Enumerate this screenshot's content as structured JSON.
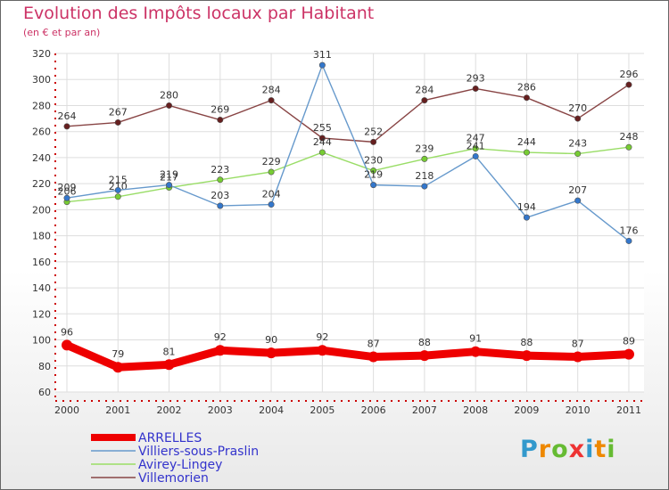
{
  "chart_data": {
    "type": "line",
    "title": "Evolution des Impôts locaux par Habitant",
    "subtitle": "(en € et par an)",
    "xlabel": "",
    "ylabel": "",
    "ylim": [
      60,
      320
    ],
    "yticks": [
      60,
      80,
      100,
      120,
      140,
      160,
      180,
      200,
      220,
      240,
      260,
      280,
      300,
      320
    ],
    "categories": [
      "2000",
      "2001",
      "2002",
      "2003",
      "2004",
      "2005",
      "2006",
      "2007",
      "2008",
      "2009",
      "2010",
      "2011"
    ],
    "grid": true,
    "legend_position": "bottom-left",
    "series": [
      {
        "name": "ARRELLES",
        "values": [
          96,
          79,
          81,
          92,
          90,
          92,
          87,
          88,
          91,
          88,
          87,
          89
        ],
        "color": "#ee0000",
        "point_color": "#ee0000",
        "labels": [
          "96",
          "79",
          "81",
          "92",
          "90",
          "92",
          "87",
          "88",
          "91",
          "88",
          "87",
          "89"
        ]
      },
      {
        "name": "Villiers-sous-Praslin",
        "values": [
          209,
          215,
          219,
          203,
          204,
          311,
          219,
          218,
          241,
          194,
          207,
          176
        ],
        "color": "#6699cc",
        "point_color": "#3377cc",
        "labels": [
          "209",
          "215",
          "219",
          "203",
          "204",
          "311",
          "219",
          "218",
          "241",
          "194",
          "207",
          "176"
        ]
      },
      {
        "name": "Avirey-Lingey",
        "values": [
          206,
          210,
          217,
          223,
          229,
          244,
          230,
          239,
          247,
          244,
          243,
          248
        ],
        "color": "#99dd66",
        "point_color": "#77cc33",
        "labels": [
          "206",
          "210",
          "217",
          "223",
          "229",
          "244",
          "230",
          "239",
          "247",
          "244",
          "243",
          "248"
        ]
      },
      {
        "name": "Villemorien",
        "values": [
          264,
          267,
          280,
          269,
          284,
          255,
          252,
          284,
          293,
          286,
          270,
          296
        ],
        "color": "#884444",
        "point_color": "#661f1f",
        "labels": [
          "264",
          "267",
          "280",
          "269",
          "284",
          "255",
          "252",
          "284",
          "293",
          "286",
          "270",
          "296"
        ]
      }
    ]
  },
  "logo": {
    "letters": [
      "P",
      "r",
      "o",
      "x",
      "i",
      "t",
      "i"
    ],
    "colors": [
      "#3399cc",
      "#ee8800",
      "#66bb33",
      "#ee3333",
      "#3399cc",
      "#ee8800",
      "#66bb33"
    ]
  }
}
